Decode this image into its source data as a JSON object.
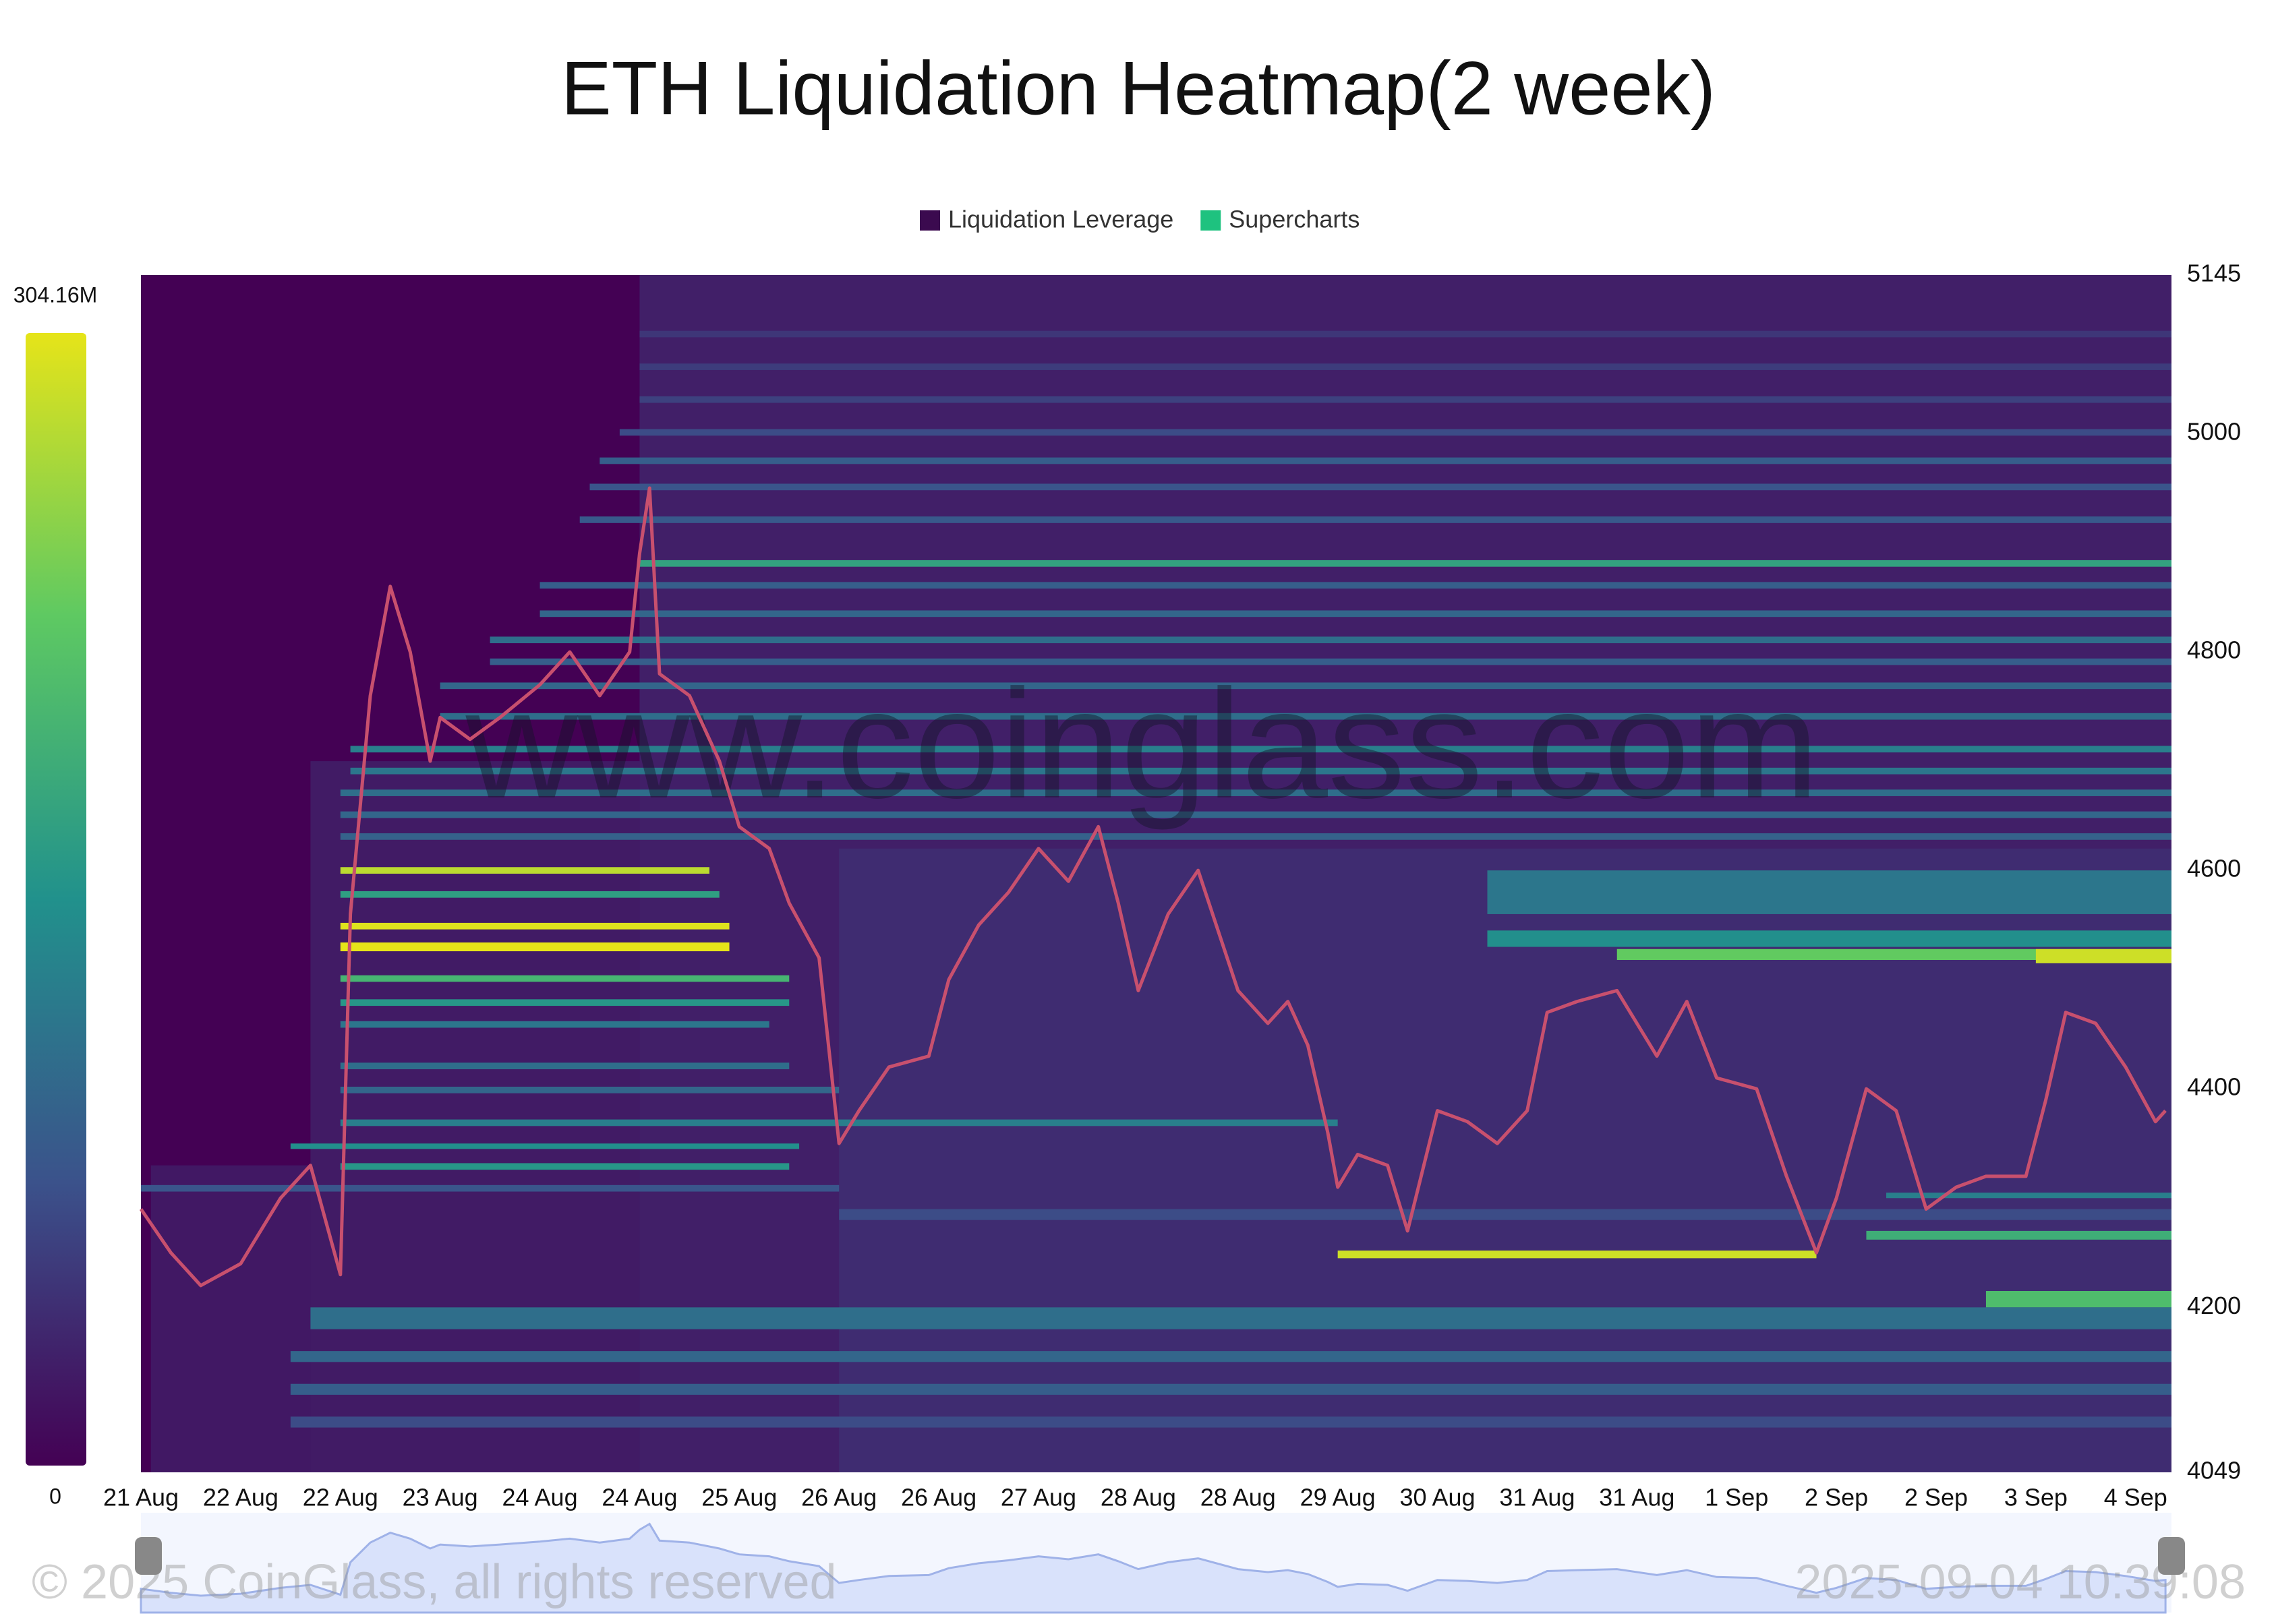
{
  "chart_data": {
    "type": "heatmap",
    "title": "ETH Liquidation Heatmap(2 week)",
    "legend": [
      {
        "name": "Liquidation Leverage",
        "color": "#3b0a4f"
      },
      {
        "name": "Supercharts",
        "color": "#1ec27f"
      }
    ],
    "background": "#440154",
    "categories": [
      "21 Aug",
      "22 Aug",
      "22 Aug",
      "23 Aug",
      "24 Aug",
      "24 Aug",
      "25 Aug",
      "26 Aug",
      "26 Aug",
      "27 Aug",
      "28 Aug",
      "28 Aug",
      "29 Aug",
      "30 Aug",
      "31 Aug",
      "31 Aug",
      "1 Sep",
      "2 Sep",
      "2 Sep",
      "3 Sep",
      "4 Sep"
    ],
    "xlim": [
      0,
      20.36
    ],
    "ylim": [
      4049,
      5145
    ],
    "yticks": [
      4049,
      4200,
      4400,
      4600,
      4800,
      5000,
      5145
    ],
    "zlim": [
      0,
      304160000
    ],
    "zticks": [
      0,
      {
        "value": 304160000,
        "label": "304.16M"
      }
    ],
    "bands": [
      [
        4049,
        5145,
        5.0,
        20.36,
        28000000
      ],
      [
        4049,
        4330,
        0.1,
        5.0,
        22000000
      ],
      [
        4049,
        4700,
        1.7,
        5.0,
        24000000
      ],
      [
        4049,
        4620,
        7.0,
        20.36,
        40000000
      ],
      [
        5088,
        5094,
        5.0,
        20.36,
        50000000
      ],
      [
        5058,
        5064,
        5.0,
        20.36,
        55000000
      ],
      [
        5028,
        5034,
        5.0,
        20.36,
        60000000
      ],
      [
        4998,
        5004,
        4.8,
        20.36,
        70000000
      ],
      [
        4972,
        4978,
        4.6,
        20.36,
        90000000
      ],
      [
        4948,
        4954,
        4.5,
        20.36,
        80000000
      ],
      [
        4918,
        4924,
        4.4,
        20.36,
        85000000
      ],
      [
        4878,
        4884,
        5.0,
        20.36,
        175000000
      ],
      [
        4858,
        4864,
        4.0,
        20.36,
        90000000
      ],
      [
        4832,
        4838,
        4.0,
        20.36,
        100000000
      ],
      [
        4808,
        4814,
        3.5,
        20.36,
        110000000
      ],
      [
        4788,
        4794,
        3.5,
        20.36,
        90000000
      ],
      [
        4766,
        4772,
        3.0,
        20.36,
        100000000
      ],
      [
        4738,
        4744,
        3.0,
        20.36,
        110000000
      ],
      [
        4708,
        4714,
        2.1,
        20.36,
        130000000
      ],
      [
        4688,
        4694,
        2.1,
        20.36,
        120000000
      ],
      [
        4668,
        4674,
        2.0,
        20.36,
        110000000
      ],
      [
        4648,
        4654,
        2.0,
        20.36,
        100000000
      ],
      [
        4628,
        4634,
        2.0,
        20.36,
        95000000
      ],
      [
        4560,
        4600,
        13.5,
        20.36,
        120000000
      ],
      [
        4597,
        4603,
        2.0,
        5.7,
        280000000
      ],
      [
        4575,
        4581,
        2.0,
        5.8,
        170000000
      ],
      [
        4546,
        4552,
        2.0,
        5.9,
        300000000
      ],
      [
        4526,
        4534,
        2.0,
        5.9,
        304160000
      ],
      [
        4498,
        4504,
        2.0,
        6.5,
        200000000
      ],
      [
        4530,
        4545,
        13.5,
        20.36,
        150000000
      ],
      [
        4518,
        4528,
        14.8,
        20.36,
        230000000
      ],
      [
        4515,
        4528,
        19.0,
        20.36,
        290000000
      ],
      [
        4476,
        4482,
        2.0,
        6.5,
        160000000
      ],
      [
        4456,
        4462,
        2.0,
        6.3,
        120000000
      ],
      [
        4418,
        4424,
        2.0,
        6.5,
        110000000
      ],
      [
        4396,
        4402,
        2.0,
        7.0,
        100000000
      ],
      [
        4366,
        4372,
        2.0,
        12.0,
        130000000
      ],
      [
        4345,
        4350,
        1.5,
        6.6,
        150000000
      ],
      [
        4326,
        4332,
        2.0,
        6.5,
        160000000
      ],
      [
        4306,
        4312,
        0.0,
        7.0,
        80000000
      ],
      [
        4300,
        4305,
        17.5,
        20.36,
        130000000
      ],
      [
        4280,
        4290,
        7.0,
        20.36,
        70000000
      ],
      [
        4262,
        4270,
        17.3,
        20.36,
        190000000
      ],
      [
        4245,
        4252,
        12.0,
        16.8,
        290000000
      ],
      [
        4200,
        4215,
        18.5,
        20.36,
        210000000
      ],
      [
        4180,
        4200,
        1.7,
        20.36,
        110000000
      ],
      [
        4150,
        4160,
        1.5,
        20.36,
        100000000
      ],
      [
        4120,
        4130,
        1.5,
        20.36,
        90000000
      ],
      [
        4090,
        4100,
        1.5,
        20.36,
        70000000
      ]
    ],
    "price": {
      "color": "#c8506e",
      "x": [
        0,
        0.3,
        0.6,
        1,
        1.4,
        1.7,
        2.0,
        2.1,
        2.3,
        2.5,
        2.7,
        2.9,
        3.0,
        3.3,
        3.6,
        4.0,
        4.3,
        4.6,
        4.9,
        5.0,
        5.1,
        5.2,
        5.5,
        5.8,
        6.0,
        6.3,
        6.5,
        6.8,
        7.0,
        7.2,
        7.5,
        7.9,
        8.1,
        8.4,
        8.7,
        9.0,
        9.3,
        9.6,
        9.8,
        10.0,
        10.3,
        10.6,
        11.0,
        11.3,
        11.5,
        11.7,
        11.9,
        12.0,
        12.2,
        12.5,
        12.7,
        13.0,
        13.3,
        13.6,
        13.9,
        14.1,
        14.4,
        14.8,
        15.2,
        15.5,
        15.8,
        16.2,
        16.5,
        16.8,
        17.0,
        17.3,
        17.6,
        17.9,
        18.2,
        18.5,
        18.9,
        19.1,
        19.3,
        19.6,
        19.9,
        20.2,
        20.3
      ],
      "values": [
        4290,
        4250,
        4220,
        4240,
        4300,
        4330,
        4230,
        4560,
        4760,
        4860,
        4800,
        4700,
        4740,
        4720,
        4740,
        4770,
        4800,
        4760,
        4800,
        4890,
        4950,
        4780,
        4760,
        4700,
        4640,
        4620,
        4570,
        4520,
        4350,
        4380,
        4420,
        4430,
        4500,
        4550,
        4580,
        4620,
        4590,
        4640,
        4570,
        4490,
        4560,
        4600,
        4490,
        4460,
        4480,
        4440,
        4360,
        4310,
        4340,
        4330,
        4270,
        4380,
        4370,
        4350,
        4380,
        4470,
        4480,
        4490,
        4430,
        4480,
        4410,
        4400,
        4320,
        4250,
        4300,
        4400,
        4380,
        4290,
        4310,
        4320,
        4320,
        4390,
        4470,
        4460,
        4420,
        4370,
        4380
      ]
    },
    "watermark": "www.coinglass.com",
    "copyright": "© 2025 CoinGlass, all rights reserved",
    "timestamp": "2025-09-04 10:39:08"
  }
}
